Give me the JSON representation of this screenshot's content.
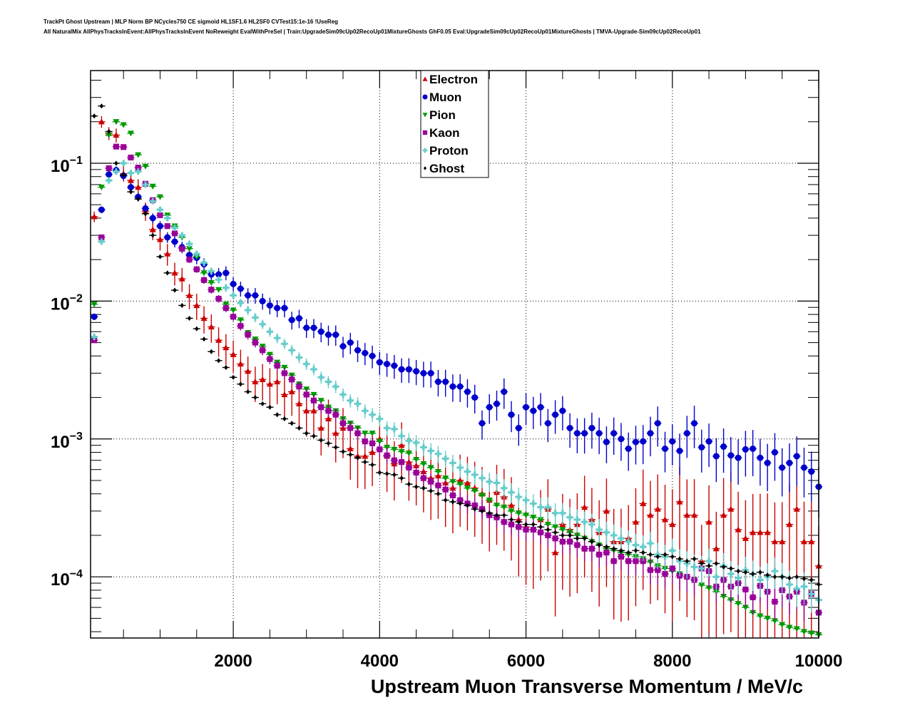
{
  "chart_data": {
    "type": "scatter",
    "title": "TrackPt Ghost Upstream | MLP Norm BP NCycles750 CE sigmoid HL1SF1.6 HL2SF0 CVTest15:1e-16 !UseReg",
    "subtitle": "All NaturalMix AllPhysTracksInEvent:AllPhysTracksInEvent NoReweight EvalWithPreSel | Train:UpgradeSim09cUp02RecoUp01MixtureGhosts GhF0.05 Eval:UpgradeSim09cUp02RecoUp01MixtureGhosts | TMVA-Upgrade-Sim09cUp02RecoUp01",
    "xlabel": "Upstream Muon Transverse Momentum / MeV/c",
    "ylabel": "",
    "xlim": [
      50,
      10000
    ],
    "ylim": [
      3.6e-05,
      0.47
    ],
    "yscale": "log",
    "grid": true,
    "legend_position": "top-center",
    "x_ticks": [
      2000,
      4000,
      6000,
      8000,
      10000
    ],
    "x_tick_labels": [
      "2000",
      "4000",
      "6000",
      "8000",
      "10000"
    ],
    "y_ticks": [
      0.1,
      0.01,
      0.001,
      0.0001
    ],
    "y_tick_labels": [
      {
        "base": "10",
        "exp": "−1"
      },
      {
        "base": "10",
        "exp": "−2"
      },
      {
        "base": "10",
        "exp": "−3"
      },
      {
        "base": "10",
        "exp": "−4"
      }
    ],
    "x": [
      100,
      200,
      300,
      400,
      500,
      600,
      700,
      800,
      900,
      1000,
      1100,
      1200,
      1300,
      1400,
      1500,
      1600,
      1700,
      1800,
      1900,
      2000,
      2100,
      2200,
      2300,
      2400,
      2500,
      2600,
      2700,
      2800,
      2900,
      3000,
      3100,
      3200,
      3300,
      3400,
      3500,
      3600,
      3700,
      3800,
      3900,
      4000,
      4100,
      4200,
      4300,
      4400,
      4500,
      4600,
      4700,
      4800,
      4900,
      5000,
      5100,
      5200,
      5300,
      5400,
      5500,
      5600,
      5700,
      5800,
      5900,
      6000,
      6100,
      6200,
      6300,
      6400,
      6500,
      6600,
      6700,
      6800,
      6900,
      7000,
      7100,
      7200,
      7300,
      7400,
      7500,
      7600,
      7700,
      7800,
      7900,
      8000,
      8100,
      8200,
      8300,
      8400,
      8500,
      8600,
      8700,
      8800,
      8900,
      9000,
      9100,
      9200,
      9300,
      9400,
      9500,
      9600,
      9700,
      9800,
      9900,
      10000
    ],
    "series": [
      {
        "name": "Electron",
        "color": "#cc0000",
        "marker": "triangle-up",
        "values": [
          0.041,
          0.2,
          0.165,
          0.16,
          0.084,
          0.075,
          0.067,
          0.045,
          0.033,
          0.028,
          0.022,
          0.016,
          0.0145,
          0.011,
          0.0093,
          0.0075,
          0.0065,
          0.0052,
          0.0046,
          0.0041,
          0.0035,
          0.0031,
          0.0026,
          0.0027,
          0.0025,
          0.0026,
          0.0021,
          0.0022,
          0.0018,
          0.0016,
          0.0016,
          0.0012,
          0.0014,
          0.0011,
          0.0012,
          0.00085,
          0.00075,
          0.00075,
          0.0008,
          0.001,
          0.00075,
          0.00066,
          0.0009,
          0.00068,
          0.00064,
          0.00058,
          0.00052,
          0.00054,
          0.00048,
          0.00044,
          0.0005,
          0.00048,
          0.00044,
          0.0004,
          0.00036,
          0.00041,
          0.00038,
          0.00033,
          0.00026,
          0.00023,
          0.00022,
          0.00026,
          0.00031,
          0.00015,
          0.00024,
          0.00022,
          0.00024,
          0.00032,
          0.00026,
          0.00021,
          0.0003,
          0.00018,
          0.00018,
          0.00019,
          0.00025,
          0.00034,
          0.00028,
          0.00031,
          0.00026,
          0.00024,
          0.00035,
          0.00028,
          0.00028,
          0.00013,
          0.00025,
          0.00016,
          0.00028,
          0.00031,
          0.00022,
          0.00019,
          0.00021,
          0.00021,
          0.00021,
          0.00018,
          0.00018,
          0.00024,
          0.00031,
          0.00018,
          0.00018,
          0.00012
        ]
      },
      {
        "name": "Muon",
        "color": "#0000cc",
        "marker": "circle",
        "values": [
          0.0077,
          0.046,
          0.083,
          0.089,
          0.081,
          0.067,
          0.057,
          0.047,
          0.04,
          0.035,
          0.029,
          0.027,
          0.0246,
          0.0216,
          0.0206,
          0.0185,
          0.0156,
          0.0156,
          0.016,
          0.0133,
          0.0123,
          0.011,
          0.011,
          0.01,
          0.0093,
          0.0089,
          0.0089,
          0.0073,
          0.0075,
          0.0064,
          0.0064,
          0.006,
          0.0057,
          0.0057,
          0.0047,
          0.005,
          0.0044,
          0.0042,
          0.004,
          0.0036,
          0.0035,
          0.0034,
          0.0032,
          0.0032,
          0.0031,
          0.003,
          0.003,
          0.0026,
          0.0026,
          0.0024,
          0.0024,
          0.0022,
          0.002,
          0.0013,
          0.0017,
          0.0018,
          0.0022,
          0.0015,
          0.0012,
          0.0017,
          0.0016,
          0.0017,
          0.0013,
          0.0015,
          0.0016,
          0.0012,
          0.0011,
          0.0011,
          0.0012,
          0.0011,
          0.00095,
          0.0011,
          0.001,
          0.00085,
          0.00095,
          0.00096,
          0.0011,
          0.0013,
          0.00085,
          0.00096,
          0.00082,
          0.0011,
          0.0013,
          0.00087,
          0.00096,
          0.00075,
          0.00088,
          0.00076,
          0.00073,
          0.00084,
          0.00085,
          0.00073,
          0.00067,
          0.0008,
          0.00062,
          0.00067,
          0.00075,
          0.00062,
          0.00058,
          0.00045
        ]
      },
      {
        "name": "Pion",
        "color": "#009900",
        "marker": "triangle-down",
        "values": [
          0.0095,
          0.067,
          0.16,
          0.2,
          0.19,
          0.165,
          0.115,
          0.095,
          0.068,
          0.057,
          0.042,
          0.035,
          0.029,
          0.024,
          0.021,
          0.016,
          0.0136,
          0.0121,
          0.0095,
          0.0086,
          0.0073,
          0.0059,
          0.0053,
          0.0047,
          0.0041,
          0.0036,
          0.0033,
          0.0029,
          0.0025,
          0.0023,
          0.0021,
          0.0019,
          0.0017,
          0.0016,
          0.0014,
          0.0013,
          0.0012,
          0.0011,
          0.0011,
          0.00096,
          0.00087,
          0.00084,
          0.00081,
          0.00079,
          0.00071,
          0.00066,
          0.00062,
          0.00058,
          0.00052,
          0.00049,
          0.00047,
          0.00044,
          0.00042,
          0.00039,
          0.00036,
          0.00033,
          0.00032,
          0.0003,
          0.00029,
          0.00028,
          0.00027,
          0.00026,
          0.00024,
          0.00023,
          0.00022,
          0.00021,
          0.0002,
          0.00019,
          0.00018,
          0.00017,
          0.00016,
          0.000155,
          0.00015,
          0.000145,
          0.00014,
          0.000135,
          0.000128,
          0.00012,
          0.000115,
          0.00011,
          0.000105,
          0.0001,
          9.5e-05,
          8.7e-05,
          8.3e-05,
          7.8e-05,
          7.2e-05,
          6.8e-05,
          6.4e-05,
          6e-05,
          5.5e-05,
          5.2e-05,
          5e-05,
          4.8e-05,
          4.5e-05,
          4.3e-05,
          4.2e-05,
          4e-05,
          3.9e-05,
          3.8e-05
        ]
      },
      {
        "name": "Kaon",
        "color": "#990099",
        "marker": "square",
        "values": [
          0.0052,
          0.029,
          0.092,
          0.132,
          0.131,
          0.11,
          0.093,
          0.071,
          0.054,
          0.042,
          0.035,
          0.031,
          0.024,
          0.02,
          0.017,
          0.0142,
          0.0121,
          0.0104,
          0.0089,
          0.0077,
          0.0066,
          0.0057,
          0.005,
          0.0044,
          0.0038,
          0.0034,
          0.003,
          0.0027,
          0.0024,
          0.0021,
          0.0019,
          0.0017,
          0.0016,
          0.0015,
          0.0013,
          0.0012,
          0.0011,
          0.00096,
          0.00093,
          0.00084,
          0.00076,
          0.0007,
          0.00068,
          0.00062,
          0.00057,
          0.00052,
          0.00049,
          0.00046,
          0.00043,
          0.00039,
          0.00036,
          0.00034,
          0.00033,
          0.00031,
          0.00028,
          0.00027,
          0.00025,
          0.00024,
          0.00023,
          0.00022,
          0.00022,
          0.00021,
          0.0002,
          0.00019,
          0.00018,
          0.00018,
          0.00017,
          0.00016,
          0.00016,
          0.000145,
          0.00015,
          0.00013,
          0.00014,
          0.00013,
          0.00013,
          0.00013,
          0.000112,
          0.000112,
          0.000105,
          0.000115,
          0.000102,
          0.0001,
          9.5e-05,
          0.000115,
          0.00011,
          8.5e-05,
          9.5e-05,
          8.5e-05,
          9e-05,
          8.1e-05,
          7.1e-05,
          8.6e-05,
          7.8e-05,
          6.6e-05,
          8e-05,
          7.2e-05,
          7.8e-05,
          6.5e-05,
          7.5e-05,
          5.5e-05
        ]
      },
      {
        "name": "Proton",
        "color": "#66cccc",
        "marker": "cross",
        "values": [
          0.0055,
          0.027,
          0.075,
          0.087,
          0.1,
          0.085,
          0.087,
          0.07,
          0.053,
          0.046,
          0.04,
          0.034,
          0.03,
          0.026,
          0.022,
          0.019,
          0.0165,
          0.0143,
          0.0125,
          0.011,
          0.0097,
          0.0086,
          0.0076,
          0.0068,
          0.006,
          0.0054,
          0.0049,
          0.0044,
          0.0039,
          0.0035,
          0.0032,
          0.0028,
          0.0026,
          0.0024,
          0.0021,
          0.0019,
          0.0018,
          0.0016,
          0.0015,
          0.0014,
          0.0012,
          0.00118,
          0.00105,
          0.00097,
          0.00094,
          0.00087,
          0.00082,
          0.00078,
          0.00072,
          0.00067,
          0.00062,
          0.00058,
          0.00055,
          0.00052,
          0.00049,
          0.00048,
          0.00044,
          0.00041,
          0.00038,
          0.00036,
          0.00034,
          0.00032,
          0.00032,
          0.00029,
          0.00029,
          0.00027,
          0.00026,
          0.00025,
          0.00024,
          0.00022,
          0.00021,
          0.0002,
          0.00019,
          0.00018,
          0.00017,
          0.000165,
          0.000175,
          0.000145,
          0.00014,
          0.000155,
          0.00013,
          0.000125,
          0.000118,
          0.000115,
          0.00013,
          0.0001,
          0.00012,
          0.000105,
          9.8e-05,
          0.000112,
          0.000105,
          9.5e-05,
          0.0001,
          0.00011,
          0.0001,
          8.8e-05,
          8.2e-05,
          8.5e-05,
          7.5e-05,
          6.8e-05
        ]
      },
      {
        "name": "Ghost",
        "color": "#000000",
        "marker": "diamond",
        "values": [
          0.22,
          0.26,
          0.17,
          0.1,
          0.082,
          0.062,
          0.055,
          0.043,
          0.03,
          0.021,
          0.016,
          0.012,
          0.0093,
          0.0075,
          0.0063,
          0.0053,
          0.0043,
          0.0037,
          0.0033,
          0.0028,
          0.0025,
          0.0022,
          0.002,
          0.0018,
          0.0017,
          0.0015,
          0.0014,
          0.0013,
          0.0012,
          0.0011,
          0.00105,
          0.00098,
          0.00093,
          0.00087,
          0.00081,
          0.00077,
          0.00073,
          0.00068,
          0.00065,
          0.00057,
          0.00056,
          0.00055,
          0.00052,
          0.00047,
          0.00045,
          0.00044,
          0.00042,
          0.0004,
          0.00036,
          0.00035,
          0.00034,
          0.00033,
          0.00031,
          0.0003,
          0.00029,
          0.00028,
          0.00028,
          0.00026,
          0.00025,
          0.00024,
          0.00024,
          0.00023,
          0.00022,
          0.00021,
          0.0002,
          0.0002,
          0.00019,
          0.00019,
          0.00018,
          0.00017,
          0.000165,
          0.00016,
          0.000155,
          0.00015,
          0.000155,
          0.00015,
          0.000145,
          0.00014,
          0.000145,
          0.00014,
          0.000135,
          0.00013,
          0.000135,
          0.000125,
          0.00012,
          0.000125,
          0.000118,
          0.000115,
          0.00011,
          0.000108,
          0.000105,
          0.000108,
          0.000103,
          0.0001,
          0.0001,
          9.8e-05,
          0.0001,
          9.7e-05,
          9.5e-05,
          8.8e-05
        ]
      }
    ]
  }
}
